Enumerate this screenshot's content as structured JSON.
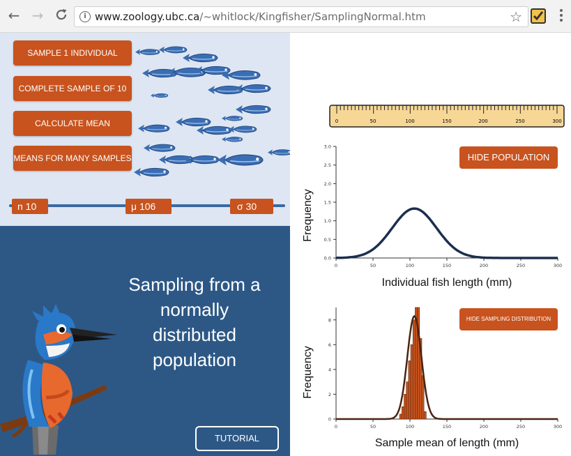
{
  "browser": {
    "url_domain": "www.zoology.ubc.ca",
    "url_path": "/~whitlock/Kingfisher/SamplingNormal.htm",
    "back_icon": "←",
    "forward_icon": "→",
    "reload_icon": "C",
    "info_icon": "i",
    "star_icon": "☆"
  },
  "controls": {
    "sample_one": "SAMPLE 1 INDIVIDUAL",
    "complete_sample": "COMPLETE SAMPLE OF 10",
    "calc_mean": "CALCULATE MEAN",
    "many_samples": "MEANS FOR MANY SAMPLES"
  },
  "params": {
    "n_label": "n 10",
    "mu_label": "μ 106",
    "sigma_label": "σ 30"
  },
  "intro": {
    "title_lines": [
      "Sampling from a",
      "normally",
      "distributed",
      "population"
    ],
    "tutorial": "TUTORIAL"
  },
  "ruler": {
    "ticks": [
      "0",
      "50",
      "100",
      "150",
      "200",
      "250",
      "300"
    ]
  },
  "population_chart": {
    "button": "HIDE POPULATION",
    "ylabel": "Frequency",
    "xlabel": "Individual fish length (mm)"
  },
  "sampling_chart": {
    "button": "HIDE SAMPLING DISTRIBUTION",
    "ylabel": "Frequency",
    "xlabel": "Sample mean of length (mm)"
  },
  "chart_data": [
    {
      "type": "line",
      "x_ticks": [
        0,
        50,
        100,
        150,
        200,
        250,
        300
      ],
      "y_ticks": [
        "0.0",
        "0.5",
        "1.0",
        "1.5",
        "2.0",
        "2.5",
        "3.0"
      ],
      "xlim": [
        0,
        300
      ],
      "ylim": [
        0,
        3.0
      ],
      "curve": {
        "mean": 106,
        "sd": 30,
        "peak": 1.33
      }
    },
    {
      "type": "bar",
      "x_ticks": [
        0,
        50,
        100,
        150,
        200,
        250,
        300
      ],
      "y_ticks": [
        "0",
        "2",
        "4",
        "6",
        "8"
      ],
      "xlim": [
        0,
        300
      ],
      "ylim": [
        0,
        9
      ],
      "bins_x": [
        86,
        89,
        92,
        95,
        98,
        101,
        104,
        107,
        110,
        113,
        116,
        119
      ],
      "bins_y": [
        0.4,
        1.0,
        2.0,
        3.0,
        4.7,
        6.0,
        8.0,
        9.0,
        9.0,
        6.5,
        3.5,
        0.6
      ],
      "bin_width": 3,
      "curve": {
        "mean": 106,
        "sd": 9.5,
        "peak": 8.3
      }
    }
  ]
}
